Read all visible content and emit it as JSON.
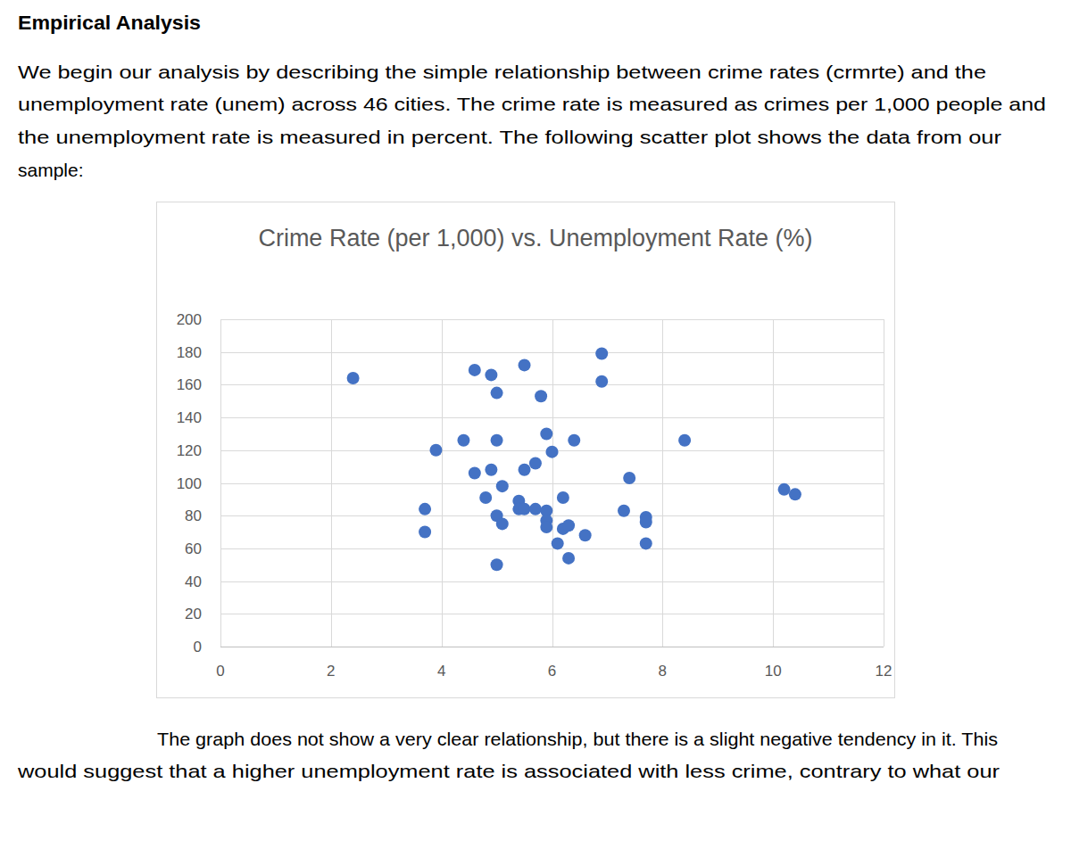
{
  "heading": "Empirical Analysis",
  "paragraphs": [
    [
      "We begin our analysis by describing the simple relationship between crime rates (crmrte) and the",
      "unemployment rate (unem) across 46 cities. The crime rate is measured as crimes per 1,000 people and",
      "the unemployment rate is measured in percent. The following scatter plot shows the data from our",
      "sample:"
    ],
    [
      "The graph does not show a very clear relationship, but there is a slight negative tendency in it. This",
      "would suggest that a higher unemployment rate is associated with less crime, contrary to what our"
    ]
  ],
  "chart_data": {
    "type": "scatter",
    "title": "Crime Rate (per 1,000) vs. Unemployment Rate (%)",
    "x": [
      2.4,
      3.7,
      3.7,
      3.9,
      4.4,
      4.6,
      4.6,
      4.9,
      4.8,
      4.9,
      5.0,
      5.0,
      5.0,
      5.0,
      5.1,
      5.1,
      5.5,
      5.5,
      5.4,
      5.4,
      5.5,
      5.7,
      5.7,
      5.8,
      5.9,
      5.9,
      5.9,
      5.9,
      6.0,
      6.1,
      6.2,
      6.2,
      6.3,
      6.3,
      6.4,
      6.6,
      6.9,
      6.9,
      7.3,
      7.4,
      7.7,
      7.7,
      7.7,
      8.4,
      10.2,
      10.4
    ],
    "values": [
      164,
      84,
      70,
      120,
      126,
      169,
      106,
      166,
      91,
      108,
      155,
      126,
      80,
      50,
      98,
      75,
      172,
      108,
      89,
      84,
      84,
      112,
      84,
      153,
      130,
      83,
      77,
      73,
      119,
      63,
      91,
      72,
      74,
      54,
      126,
      68,
      179,
      162,
      83,
      103,
      79,
      76,
      63,
      126,
      96,
      93
    ],
    "color": "#4472c4",
    "marker": "circle",
    "xlim": [
      0,
      12
    ],
    "xticks": [
      0,
      2,
      4,
      6,
      8,
      10,
      12
    ],
    "ylim": [
      0,
      200
    ],
    "yticks": [
      0,
      20,
      40,
      60,
      80,
      100,
      120,
      140,
      160,
      180,
      200
    ],
    "grid": true
  }
}
